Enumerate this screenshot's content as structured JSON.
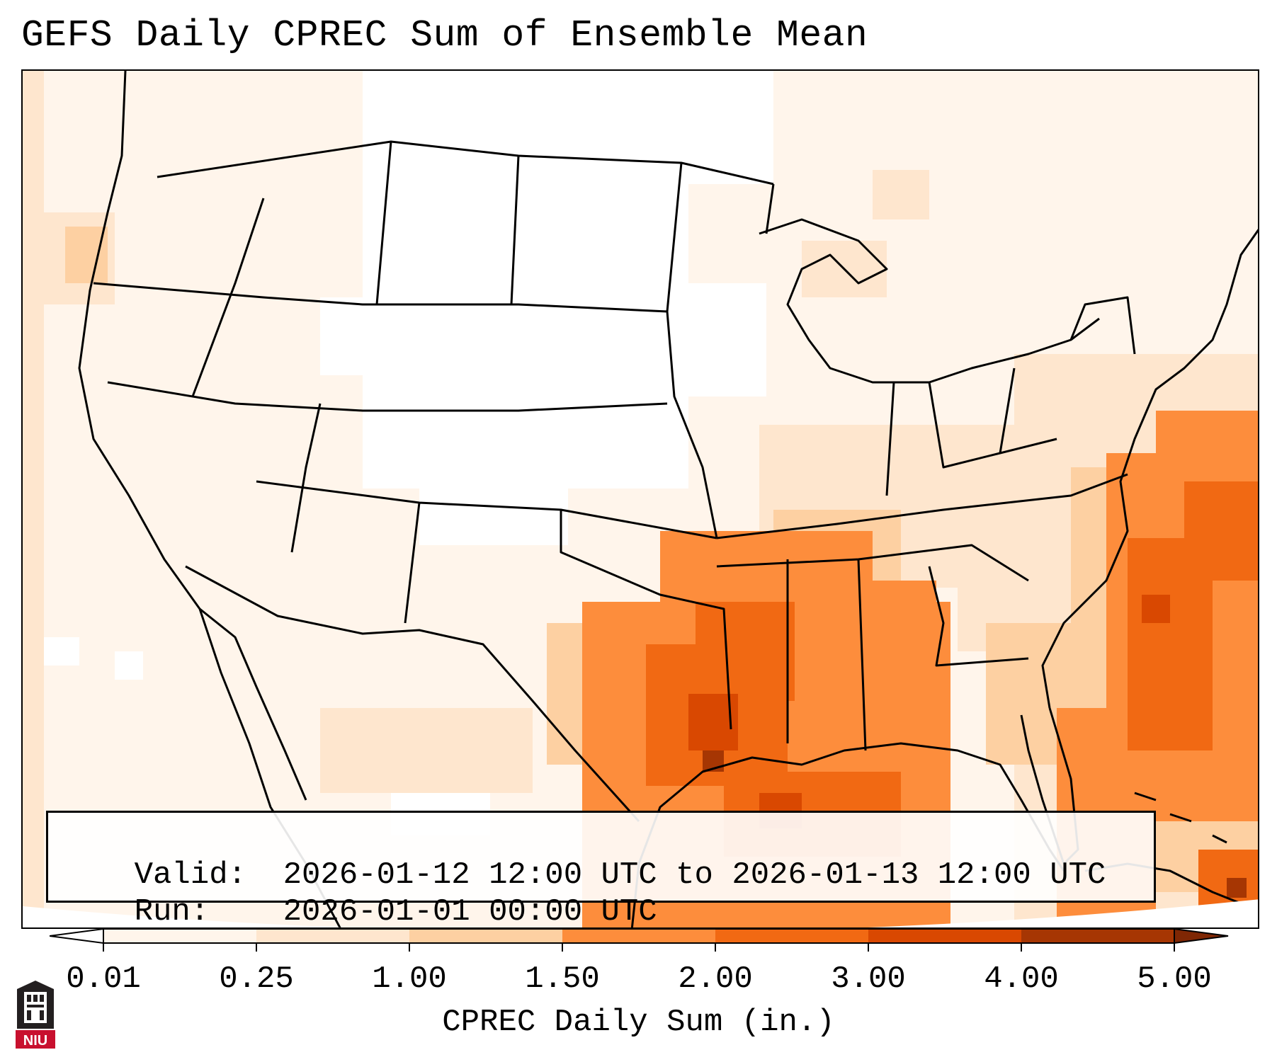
{
  "title": "GEFS Daily CPREC Sum of Ensemble Mean",
  "info": {
    "valid_label": "Valid:",
    "valid_text": "2026-01-12 12:00 UTC to 2026-01-13 12:00 UTC",
    "run_label": "Run:",
    "run_text": "2026-01-01 00:00 UTC"
  },
  "colorbar": {
    "label": "CPREC Daily Sum (in.)",
    "ticks": [
      "0.01",
      "0.25",
      "1.00",
      "1.50",
      "2.00",
      "3.00",
      "4.00",
      "5.00"
    ],
    "colors": [
      "#fff5eb",
      "#fee6ce",
      "#fdd0a2",
      "#fd8d3c",
      "#f16913",
      "#d94801",
      "#a63603"
    ],
    "extend": "both"
  },
  "logo": {
    "name": "NIU",
    "text": "NIU"
  },
  "colors": {
    "very_light": "#fff5eb",
    "light": "#fee6ce",
    "medium_light": "#fdd0a2",
    "medium": "#fd8d3c",
    "strong": "#f16913",
    "very_strong": "#d94801",
    "max": "#a63603",
    "outline": "#000000",
    "logo_red": "#c8102e"
  }
}
